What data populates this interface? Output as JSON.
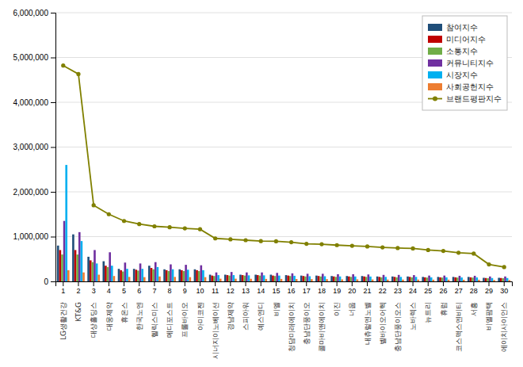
{
  "chart_data": {
    "type": "bar",
    "categories": [
      "1",
      "2",
      "3",
      "4",
      "5",
      "6",
      "7",
      "8",
      "9",
      "10",
      "11",
      "12",
      "13",
      "14",
      "15",
      "16",
      "17",
      "18",
      "19",
      "20",
      "21",
      "22",
      "23",
      "24",
      "25",
      "26",
      "27",
      "28",
      "29",
      "30"
    ],
    "series": [
      {
        "name": "참여지수",
        "type": "bar",
        "color": "#1f4e79",
        "values": [
          800000,
          1050000,
          550000,
          450000,
          280000,
          280000,
          350000,
          270000,
          270000,
          270000,
          150000,
          150000,
          150000,
          150000,
          150000,
          140000,
          130000,
          130000,
          120000,
          120000,
          120000,
          110000,
          110000,
          110000,
          100000,
          100000,
          100000,
          100000,
          80000,
          80000
        ]
      },
      {
        "name": "미디어지수",
        "type": "bar",
        "color": "#c00000",
        "values": [
          700000,
          700000,
          470000,
          350000,
          250000,
          260000,
          300000,
          250000,
          250000,
          250000,
          130000,
          140000,
          140000,
          140000,
          130000,
          130000,
          120000,
          120000,
          110000,
          110000,
          110000,
          100000,
          100000,
          100000,
          90000,
          90000,
          90000,
          90000,
          75000,
          75000
        ]
      },
      {
        "name": "소통지수",
        "type": "bar",
        "color": "#70ad47",
        "values": [
          600000,
          600000,
          430000,
          320000,
          220000,
          240000,
          270000,
          230000,
          230000,
          230000,
          120000,
          130000,
          130000,
          130000,
          120000,
          120000,
          110000,
          110000,
          100000,
          100000,
          100000,
          90000,
          90000,
          90000,
          85000,
          85000,
          85000,
          85000,
          70000,
          70000
        ]
      },
      {
        "name": "커뮤니티지수",
        "type": "bar",
        "color": "#7030a0",
        "values": [
          1350000,
          1100000,
          700000,
          650000,
          420000,
          400000,
          430000,
          380000,
          370000,
          360000,
          200000,
          210000,
          200000,
          200000,
          190000,
          180000,
          170000,
          170000,
          160000,
          160000,
          155000,
          145000,
          145000,
          140000,
          130000,
          130000,
          125000,
          125000,
          110000,
          110000
        ]
      },
      {
        "name": "시장지수",
        "type": "bar",
        "color": "#00b0f0",
        "values": [
          2600000,
          900000,
          400000,
          350000,
          280000,
          280000,
          320000,
          270000,
          260000,
          250000,
          140000,
          140000,
          135000,
          135000,
          130000,
          125000,
          115000,
          115000,
          110000,
          110000,
          108000,
          100000,
          100000,
          100000,
          90000,
          90000,
          88000,
          88000,
          75000,
          75000
        ]
      },
      {
        "name": "사회공헌지수",
        "type": "bar",
        "color": "#ed7d31",
        "values": [
          250000,
          200000,
          150000,
          120000,
          100000,
          95000,
          110000,
          100000,
          95000,
          95000,
          60000,
          60000,
          58000,
          55000,
          55000,
          53000,
          50000,
          50000,
          45000,
          45000,
          43000,
          40000,
          40000,
          40000,
          38000,
          38000,
          36000,
          36000,
          30000,
          30000
        ]
      },
      {
        "name": "브랜드평판지수",
        "type": "line",
        "color": "#808000",
        "marker": "circle",
        "values": [
          4820000,
          4630000,
          1700000,
          1500000,
          1350000,
          1280000,
          1230000,
          1210000,
          1185000,
          1165000,
          960000,
          940000,
          920000,
          900000,
          895000,
          875000,
          840000,
          830000,
          810000,
          795000,
          780000,
          760000,
          745000,
          735000,
          700000,
          680000,
          640000,
          620000,
          380000,
          320000
        ]
      }
    ],
    "annotations": [
      {
        "text": "LG생활건강",
        "x": "1"
      },
      {
        "text": "KT&G",
        "x": "2"
      },
      {
        "text": "대상홀딩스",
        "x": "3"
      },
      {
        "text": "대웅제약",
        "x": "4"
      },
      {
        "text": "휴온스",
        "x": "5"
      },
      {
        "text": "한국노엔",
        "x": "6"
      },
      {
        "text": "헬릭스미스",
        "x": "7"
      },
      {
        "text": "메디포스트",
        "x": "8"
      },
      {
        "text": "프롤바이오",
        "x": "9"
      },
      {
        "text": "아미코젠",
        "x": "10"
      },
      {
        "text": "시너지이노베이션",
        "x": "11"
      },
      {
        "text": "경남제약",
        "x": "12"
      },
      {
        "text": "스피아워",
        "x": "13"
      },
      {
        "text": "예스엔디",
        "x": "14"
      },
      {
        "text": "비엘",
        "x": "15"
      },
      {
        "text": "청담미래에이치",
        "x": "16"
      },
      {
        "text": "충남단풍이오",
        "x": "17"
      },
      {
        "text": "콜마비앤에이치",
        "x": "18"
      },
      {
        "text": "이진",
        "x": "19"
      },
      {
        "text": "너웁",
        "x": "20"
      },
      {
        "text": "내츄럴엔노벨",
        "x": "21"
      },
      {
        "text": "벨바이오어헥",
        "x": "22"
      },
      {
        "text": "충남단풍이오스",
        "x": "23"
      },
      {
        "text": "노바렉스",
        "x": "24"
      },
      {
        "text": "뉴트리",
        "x": "25"
      },
      {
        "text": "휴럼",
        "x": "26"
      },
      {
        "text": "코스맥스엔비티",
        "x": "27"
      },
      {
        "text": "서흥",
        "x": "28"
      },
      {
        "text": "비엘팜택",
        "x": "29"
      },
      {
        "text": "에이치사이언스",
        "x": "30"
      }
    ],
    "ylim": [
      0,
      6000000
    ],
    "yticks": [
      0,
      {
        "value": 1000000,
        "label": "1,000,000"
      },
      {
        "value": 2000000,
        "label": "2,000,000"
      },
      {
        "value": 3000000,
        "label": "3,000,000"
      },
      {
        "value": 4000000,
        "label": "4,000,000"
      },
      {
        "value": 5000000,
        "label": "5,000,000"
      },
      {
        "value": 6000000,
        "label": "6,000,000"
      }
    ],
    "grid": true,
    "legend": "upper right"
  }
}
